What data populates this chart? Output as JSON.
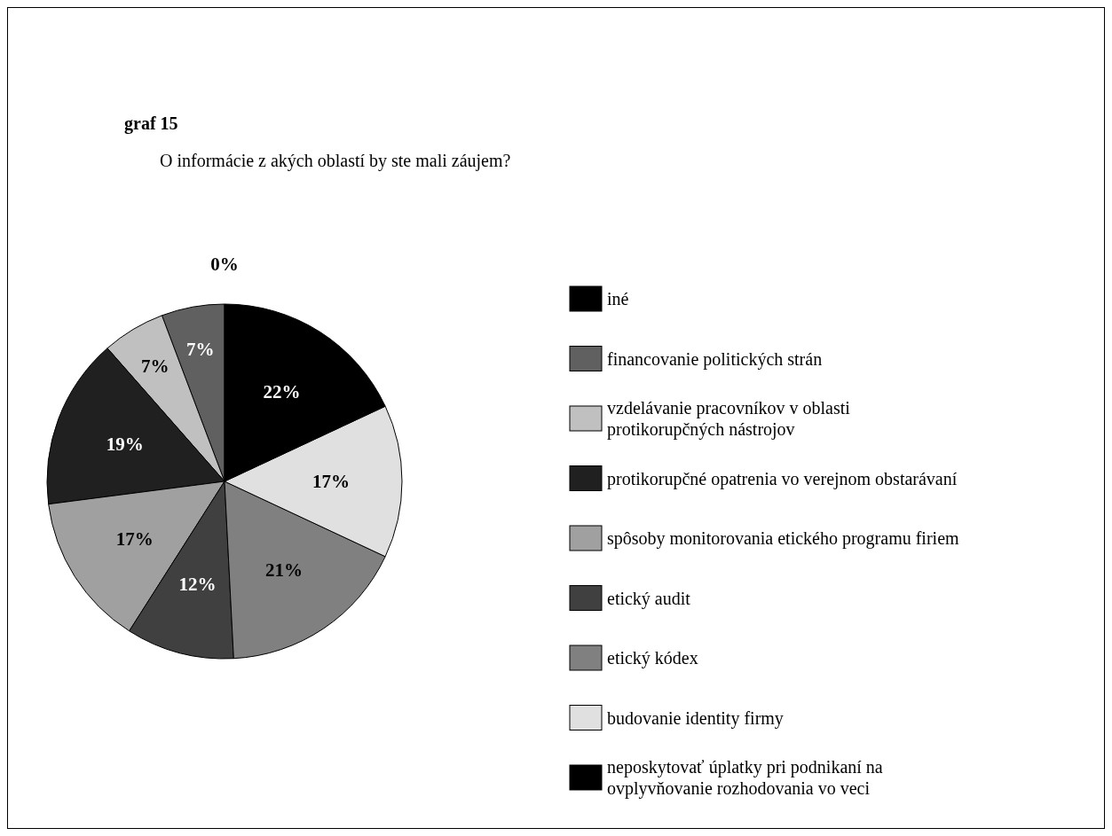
{
  "chart_data": {
    "type": "pie",
    "title": "graf 15",
    "subtitle": "O informácie z akých oblastí by ste mali záujem?",
    "categories": [
      "iné",
      "financovanie politických strán",
      "vzdelávanie pracovníkov v oblasti\nprotikorupčných nástrojov",
      "protikorupčné opatrenia vo verejnom obstarávaní",
      "spôsoby monitorovania etického programu firiem",
      "etický audit",
      "etický kódex",
      "budovanie identity firmy",
      "neposkytovať úplatky pri podnikaní na\novplyvňovanie rozhodovania vo veci"
    ],
    "values": [
      0,
      7,
      7,
      19,
      17,
      12,
      21,
      17,
      22
    ],
    "value_labels": [
      "0%",
      "7%",
      "7%",
      "19%",
      "17%",
      "12%",
      "21%",
      "17%",
      "22%"
    ],
    "colors": [
      "#000000",
      "#606060",
      "#c0c0c0",
      "#202020",
      "#a0a0a0",
      "#404040",
      "#808080",
      "#e0e0e0",
      "#000000"
    ],
    "legend": "right"
  }
}
